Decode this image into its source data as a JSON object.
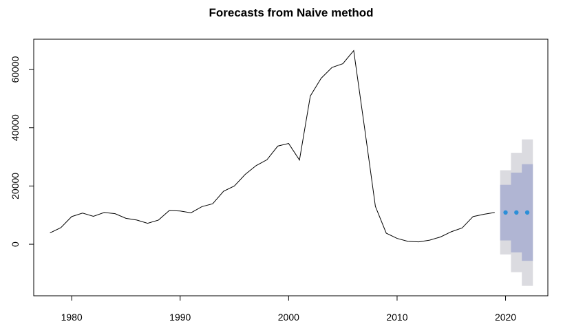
{
  "chart_data": {
    "type": "line",
    "title": "Forecasts from Naive method",
    "xlabel": "",
    "ylabel": "",
    "xlim": [
      1976.5,
      2023.9
    ],
    "ylim": [
      -17700,
      70400
    ],
    "x_ticks": [
      1980,
      1990,
      2000,
      2010,
      2020
    ],
    "y_ticks": [
      0,
      20000,
      40000,
      60000
    ],
    "x_tick_labels": [
      "1980",
      "1990",
      "2000",
      "2010",
      "2020"
    ],
    "y_tick_labels": [
      "0",
      "20000",
      "40000",
      "60000"
    ],
    "series": [
      {
        "kind": "history",
        "color": "#000000",
        "x": [
          1978,
          1979,
          1980,
          1981,
          1982,
          1983,
          1984,
          1985,
          1986,
          1987,
          1988,
          1989,
          1990,
          1991,
          1992,
          1993,
          1994,
          1995,
          1996,
          1997,
          1998,
          1999,
          2000,
          2001,
          2002,
          2003,
          2004,
          2005,
          2006,
          2007,
          2008,
          2009,
          2010,
          2011,
          2012,
          2013,
          2014,
          2015,
          2016,
          2017,
          2018,
          2019
        ],
        "values": [
          3900,
          5700,
          9500,
          10700,
          9600,
          10900,
          10500,
          8900,
          8300,
          7200,
          8300,
          11600,
          11400,
          10800,
          12900,
          13900,
          18200,
          20000,
          24000,
          27000,
          29000,
          33700,
          34600,
          28900,
          50900,
          57000,
          60700,
          62000,
          66500,
          40000,
          13000,
          3800,
          2000,
          1000,
          800,
          1400,
          2500,
          4300,
          5600,
          9500,
          10300,
          10900
        ]
      },
      {
        "kind": "point_forecast",
        "color": "#2b8fd8",
        "x": [
          2020,
          2021,
          2022
        ],
        "values": [
          10900,
          10900,
          10900
        ]
      }
    ],
    "intervals": [
      {
        "level": "95%",
        "color": "#dbdbe0",
        "x": [
          2020,
          2021,
          2022
        ],
        "lower": [
          -3500,
          -9600,
          -14300
        ],
        "upper": [
          25400,
          31400,
          36000
        ]
      },
      {
        "level": "80%",
        "color": "#b0b5d3",
        "x": [
          2020,
          2021,
          2022
        ],
        "lower": [
          1300,
          -2800,
          -5700
        ],
        "upper": [
          20400,
          24600,
          27500
        ]
      }
    ]
  }
}
